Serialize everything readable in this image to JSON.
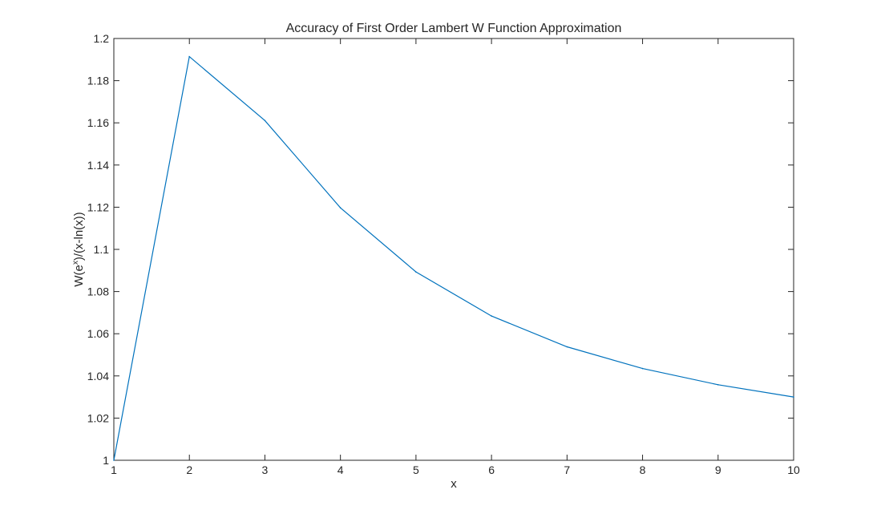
{
  "chart_data": {
    "type": "line",
    "title": "Accuracy of First Order Lambert W Function Approximation",
    "xlabel": "x",
    "ylabel": {
      "base": "W(e",
      "sup": "x",
      "rest": ")/(x-ln(x))"
    },
    "xlim": [
      1,
      10
    ],
    "ylim": [
      1,
      1.2
    ],
    "xticks": [
      "1",
      "2",
      "3",
      "4",
      "5",
      "6",
      "7",
      "8",
      "9",
      "10"
    ],
    "yticks": [
      "1",
      "1.02",
      "1.04",
      "1.06",
      "1.08",
      "1.1",
      "1.12",
      "1.14",
      "1.16",
      "1.18",
      "1.2"
    ],
    "grid": false,
    "series": [
      {
        "color": "#0072bd",
        "x": [
          1,
          2,
          3,
          4,
          5,
          6,
          7,
          8,
          9,
          10
        ],
        "y": [
          1.0,
          1.1914,
          1.1611,
          1.1197,
          1.0893,
          1.0684,
          1.0538,
          1.0435,
          1.0358,
          1.03
        ]
      }
    ]
  }
}
